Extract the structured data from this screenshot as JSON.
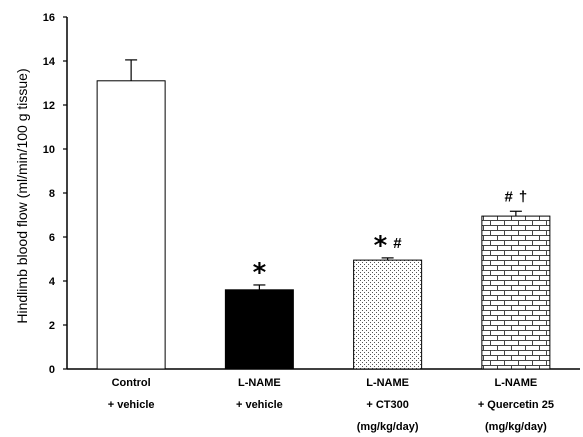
{
  "chart_data": {
    "type": "bar",
    "ylabel": "Hindlimb blood flow (ml/min/100 g tissue)",
    "ylim": [
      0,
      16
    ],
    "yticks": [
      "0",
      "2",
      "4",
      "6",
      "8",
      "10",
      "12",
      "14",
      "16"
    ],
    "categories": [
      {
        "lines": [
          "Control",
          "+ vehicle"
        ]
      },
      {
        "lines": [
          "L-NAME",
          "+ vehicle"
        ]
      },
      {
        "lines": [
          "L-NAME",
          "+ CT300",
          "(mg/kg/day)"
        ]
      },
      {
        "lines": [
          "L-NAME",
          "+ Quercetin 25",
          "(mg/kg/day)"
        ]
      }
    ],
    "values": [
      13.1,
      3.6,
      4.95,
      6.95
    ],
    "errors": [
      0.95,
      0.22,
      0.1,
      0.22
    ],
    "fills": [
      "white",
      "black",
      "dots",
      "bricks"
    ],
    "annotations": [
      "",
      "*",
      "* #",
      "# †"
    ]
  }
}
